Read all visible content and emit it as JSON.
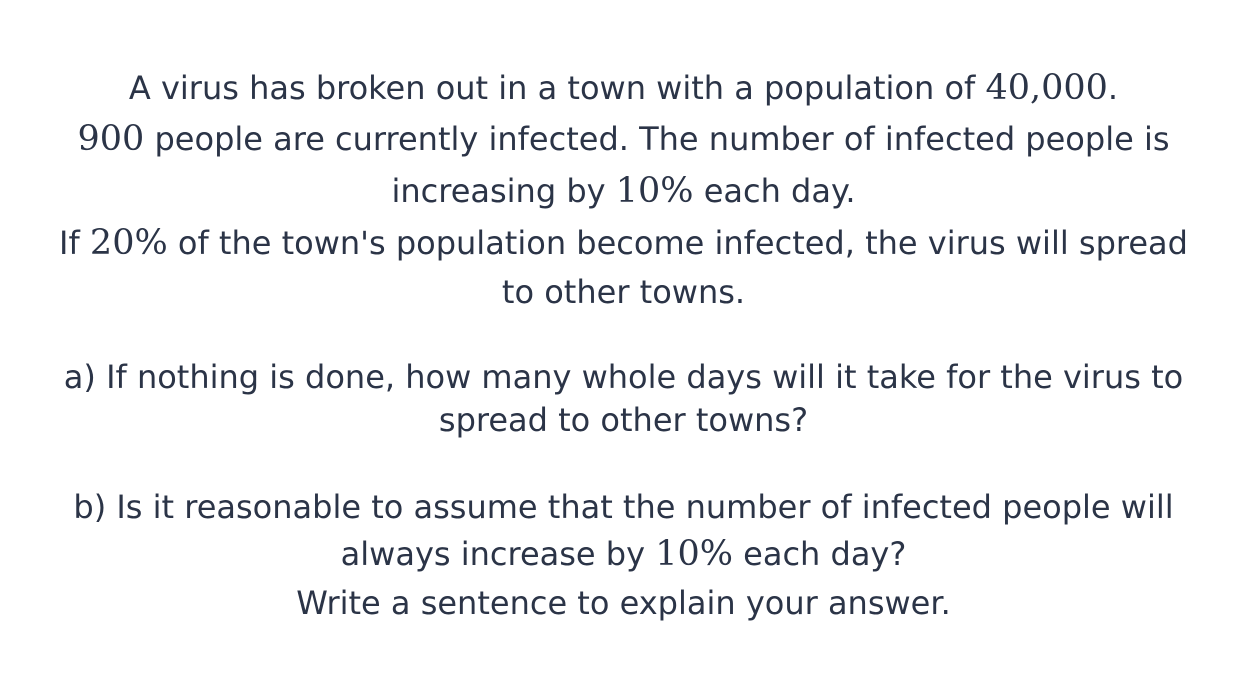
{
  "intro": {
    "line1": {
      "before": "A virus has broken out in a town with a population of ",
      "math": "40,000",
      "after": "."
    },
    "line2": {
      "before": "",
      "math": "900",
      "after": " people are currently infected. The number of infected people is"
    },
    "line3": {
      "before": "increasing by ",
      "math": "10%",
      "after": " each day."
    },
    "line4": {
      "before": "If ",
      "math": "20%",
      "after": " of the town's population become infected, the virus will spread"
    },
    "line5": {
      "text": "to other towns."
    }
  },
  "part_a": {
    "line1": "a) If nothing is done, how many whole days will it take for the virus to",
    "line2": "spread to other towns?"
  },
  "part_b": {
    "line1": "b) Is it reasonable to assume that the number of infected people will",
    "line2": {
      "before": "always increase by ",
      "math": "10%",
      "after": " each day?"
    },
    "line3": "Write a sentence to explain your answer."
  }
}
